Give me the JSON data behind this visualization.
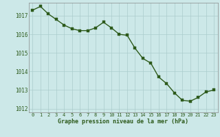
{
  "x": [
    0,
    1,
    2,
    3,
    4,
    5,
    6,
    7,
    8,
    9,
    10,
    11,
    12,
    13,
    14,
    15,
    16,
    17,
    18,
    19,
    20,
    21,
    22,
    23
  ],
  "y": [
    1017.3,
    1017.5,
    1017.1,
    1016.8,
    1016.5,
    1016.3,
    1016.2,
    1016.2,
    1016.35,
    1016.65,
    1016.35,
    1016.0,
    1015.95,
    1015.25,
    1014.7,
    1014.45,
    1013.7,
    1013.35,
    1012.85,
    1012.45,
    1012.4,
    1012.6,
    1012.9,
    1013.0
  ],
  "line_color": "#2d5a1b",
  "marker_color": "#2d5a1b",
  "bg_color": "#cce8e8",
  "grid_color": "#aacccc",
  "tick_color": "#2d5a1b",
  "xlabel": "Graphe pression niveau de la mer (hPa)",
  "xlabel_color": "#2d5a1b",
  "ylim": [
    1011.8,
    1017.7
  ],
  "yticks": [
    1012,
    1013,
    1014,
    1015,
    1016,
    1017
  ],
  "xticks": [
    0,
    1,
    2,
    3,
    4,
    5,
    6,
    7,
    8,
    9,
    10,
    11,
    12,
    13,
    14,
    15,
    16,
    17,
    18,
    19,
    20,
    21,
    22,
    23
  ],
  "line_width": 1.0,
  "marker_size": 2.5
}
